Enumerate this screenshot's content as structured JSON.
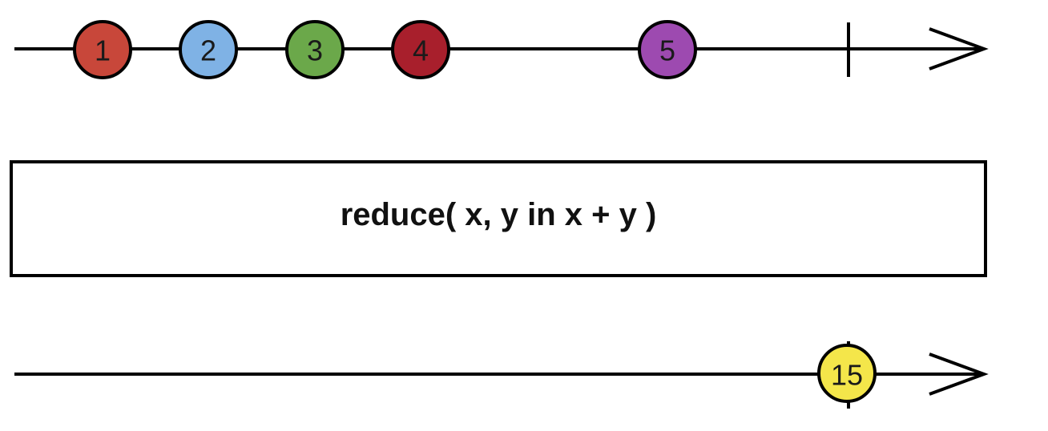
{
  "input_stream": {
    "marbles": [
      {
        "label": "1",
        "color": "#c8473a"
      },
      {
        "label": "2",
        "color": "#7fb2e5"
      },
      {
        "label": "3",
        "color": "#6ba84a"
      },
      {
        "label": "4",
        "color": "#a81f2c"
      },
      {
        "label": "5",
        "color": "#9d4ab0"
      }
    ],
    "completed": true
  },
  "operator": {
    "label": "reduce( x, y in x + y )"
  },
  "output_stream": {
    "marbles": [
      {
        "label": "15",
        "color": "#f4e64a"
      }
    ],
    "completed": true
  }
}
